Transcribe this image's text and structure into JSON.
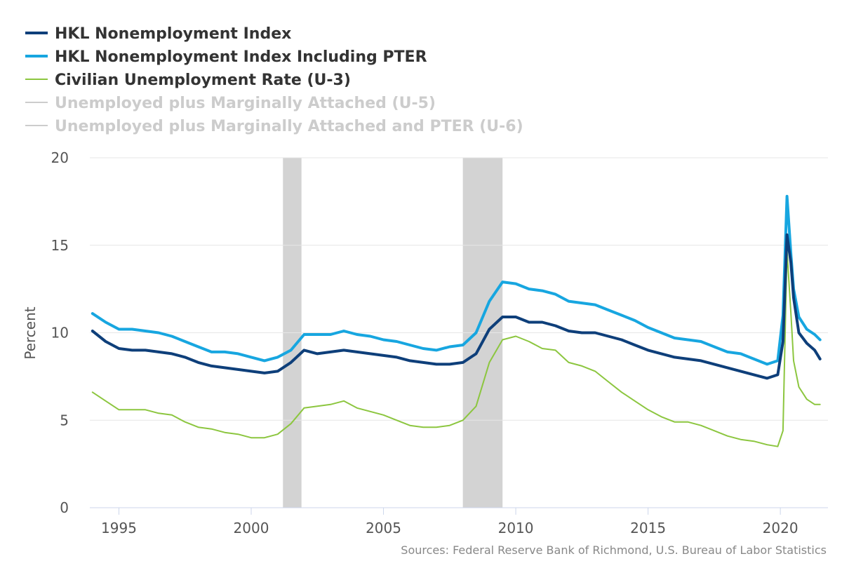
{
  "chart_data": {
    "type": "line",
    "title": "",
    "xlabel": "",
    "ylabel": "Percent",
    "xlim": [
      1993.9,
      2021.8
    ],
    "ylim": [
      0,
      20
    ],
    "x_ticks": [
      1995,
      2000,
      2005,
      2010,
      2015,
      2020
    ],
    "y_ticks": [
      0,
      5,
      10,
      15,
      20
    ],
    "grid": "horizontal",
    "legend_position": "top-left",
    "recessions": [
      {
        "start": 2001.2,
        "end": 2001.9
      },
      {
        "start": 2008.0,
        "end": 2009.5
      }
    ],
    "series": [
      {
        "name": "HKL Nonemployment Index",
        "color": "#0e3f7a",
        "visible": true,
        "x": [
          1994.0,
          1994.5,
          1995.0,
          1995.5,
          1996.0,
          1996.5,
          1997.0,
          1997.5,
          1998.0,
          1998.5,
          1999.0,
          1999.5,
          2000.0,
          2000.5,
          2001.0,
          2001.5,
          2002.0,
          2002.5,
          2003.0,
          2003.5,
          2004.0,
          2004.5,
          2005.0,
          2005.5,
          2006.0,
          2006.5,
          2007.0,
          2007.5,
          2008.0,
          2008.5,
          2009.0,
          2009.5,
          2010.0,
          2010.5,
          2011.0,
          2011.5,
          2012.0,
          2012.5,
          2013.0,
          2013.5,
          2014.0,
          2014.5,
          2015.0,
          2015.5,
          2016.0,
          2016.5,
          2017.0,
          2017.5,
          2018.0,
          2018.5,
          2019.0,
          2019.5,
          2019.9,
          2020.1,
          2020.25,
          2020.4,
          2020.5,
          2020.7,
          2021.0,
          2021.3,
          2021.5
        ],
        "y": [
          10.1,
          9.5,
          9.1,
          9.0,
          9.0,
          8.9,
          8.8,
          8.6,
          8.3,
          8.1,
          8.0,
          7.9,
          7.8,
          7.7,
          7.8,
          8.3,
          9.0,
          8.8,
          8.9,
          9.0,
          8.9,
          8.8,
          8.7,
          8.6,
          8.4,
          8.3,
          8.2,
          8.2,
          8.3,
          8.8,
          10.2,
          10.9,
          10.9,
          10.6,
          10.6,
          10.4,
          10.1,
          10.0,
          10.0,
          9.8,
          9.6,
          9.3,
          9.0,
          8.8,
          8.6,
          8.5,
          8.4,
          8.2,
          8.0,
          7.8,
          7.6,
          7.4,
          7.6,
          9.5,
          15.6,
          14.0,
          12.0,
          10.0,
          9.4,
          9.0,
          8.5
        ]
      },
      {
        "name": "HKL Nonemployment Index Including PTER",
        "color": "#17a6e0",
        "visible": true,
        "x": [
          1994.0,
          1994.5,
          1995.0,
          1995.5,
          1996.0,
          1996.5,
          1997.0,
          1997.5,
          1998.0,
          1998.5,
          1999.0,
          1999.5,
          2000.0,
          2000.5,
          2001.0,
          2001.5,
          2002.0,
          2002.5,
          2003.0,
          2003.5,
          2004.0,
          2004.5,
          2005.0,
          2005.5,
          2006.0,
          2006.5,
          2007.0,
          2007.5,
          2008.0,
          2008.5,
          2009.0,
          2009.5,
          2010.0,
          2010.5,
          2011.0,
          2011.5,
          2012.0,
          2012.5,
          2013.0,
          2013.5,
          2014.0,
          2014.5,
          2015.0,
          2015.5,
          2016.0,
          2016.5,
          2017.0,
          2017.5,
          2018.0,
          2018.5,
          2019.0,
          2019.5,
          2019.9,
          2020.1,
          2020.25,
          2020.4,
          2020.5,
          2020.7,
          2021.0,
          2021.3,
          2021.5
        ],
        "y": [
          11.1,
          10.6,
          10.2,
          10.2,
          10.1,
          10.0,
          9.8,
          9.5,
          9.2,
          8.9,
          8.9,
          8.8,
          8.6,
          8.4,
          8.6,
          9.0,
          9.9,
          9.9,
          9.9,
          10.1,
          9.9,
          9.8,
          9.6,
          9.5,
          9.3,
          9.1,
          9.0,
          9.2,
          9.3,
          10.0,
          11.8,
          12.9,
          12.8,
          12.5,
          12.4,
          12.2,
          11.8,
          11.7,
          11.6,
          11.3,
          11.0,
          10.7,
          10.3,
          10.0,
          9.7,
          9.6,
          9.5,
          9.2,
          8.9,
          8.8,
          8.5,
          8.2,
          8.4,
          11.0,
          17.8,
          14.5,
          12.5,
          10.9,
          10.2,
          9.9,
          9.6
        ]
      },
      {
        "name": "Civilian Unemployment Rate (U-3)",
        "color": "#8cc63f",
        "visible": true,
        "x": [
          1994.0,
          1994.5,
          1995.0,
          1995.5,
          1996.0,
          1996.5,
          1997.0,
          1997.5,
          1998.0,
          1998.5,
          1999.0,
          1999.5,
          2000.0,
          2000.5,
          2001.0,
          2001.5,
          2002.0,
          2002.5,
          2003.0,
          2003.5,
          2004.0,
          2004.5,
          2005.0,
          2005.5,
          2006.0,
          2006.5,
          2007.0,
          2007.5,
          2008.0,
          2008.5,
          2009.0,
          2009.5,
          2010.0,
          2010.5,
          2011.0,
          2011.5,
          2012.0,
          2012.5,
          2013.0,
          2013.5,
          2014.0,
          2014.5,
          2015.0,
          2015.5,
          2016.0,
          2016.5,
          2017.0,
          2017.5,
          2018.0,
          2018.5,
          2019.0,
          2019.5,
          2019.9,
          2020.1,
          2020.25,
          2020.4,
          2020.5,
          2020.7,
          2021.0,
          2021.3,
          2021.5
        ],
        "y": [
          6.6,
          6.1,
          5.6,
          5.6,
          5.6,
          5.4,
          5.3,
          4.9,
          4.6,
          4.5,
          4.3,
          4.2,
          4.0,
          4.0,
          4.2,
          4.8,
          5.7,
          5.8,
          5.9,
          6.1,
          5.7,
          5.5,
          5.3,
          5.0,
          4.7,
          4.6,
          4.6,
          4.7,
          5.0,
          5.8,
          8.3,
          9.6,
          9.8,
          9.5,
          9.1,
          9.0,
          8.3,
          8.1,
          7.8,
          7.2,
          6.6,
          6.1,
          5.6,
          5.2,
          4.9,
          4.9,
          4.7,
          4.4,
          4.1,
          3.9,
          3.8,
          3.6,
          3.5,
          4.4,
          14.7,
          11.1,
          8.4,
          6.9,
          6.2,
          5.9,
          5.9
        ]
      },
      {
        "name": "Unemployed plus Marginally Attached (U-5)",
        "color": "#cccccc",
        "visible": false,
        "x": [],
        "y": []
      },
      {
        "name": "Unemployed plus Marginally Attached and PTER (U-6)",
        "color": "#cccccc",
        "visible": false,
        "x": [],
        "y": []
      }
    ],
    "source_note": "Sources: Federal Reserve Bank of Richmond, U.S. Bureau of Labor Statistics"
  }
}
